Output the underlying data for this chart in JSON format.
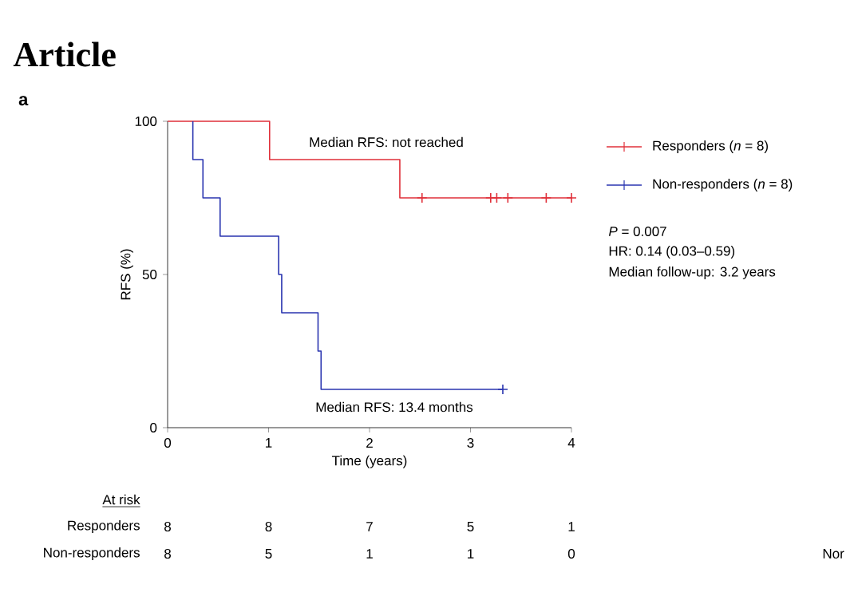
{
  "chart_data": {
    "type": "step",
    "title": "a",
    "xlabel": "Time (years)",
    "ylabel": "RFS (%)",
    "xlim": [
      0,
      4
    ],
    "ylim": [
      0,
      100
    ],
    "xticks": [
      0,
      1,
      2,
      3,
      4
    ],
    "yticks": [
      0,
      50,
      100
    ],
    "legend": "right",
    "series": [
      {
        "name": "Responders (*n* = 8)",
        "color": "#e0303a",
        "x": [
          0,
          1.01,
          2.3,
          4.0
        ],
        "values": [
          100,
          87.5,
          75,
          75
        ]
      },
      {
        "name": "Non-responders (*n* = 8)",
        "color": "#2a35b0",
        "x": [
          0.25,
          0.25,
          0.35,
          0.52,
          1.1,
          1.13,
          1.49,
          1.52,
          3.32
        ],
        "values": [
          100,
          87.5,
          75,
          62.5,
          50,
          37.5,
          25,
          12.5,
          12.5
        ]
      },
      {
        "type": "scatter",
        "marker": "cross",
        "color": "#e0303a",
        "x": [
          2.52,
          3.2,
          3.26,
          3.37,
          3.75,
          4.0
        ],
        "values": [
          75,
          75,
          75,
          75,
          75,
          75
        ]
      },
      {
        "type": "scatter",
        "marker": "cross",
        "color": "#2a35b0",
        "x": [
          3.32
        ],
        "values": [
          12.5
        ]
      }
    ],
    "annotations": [
      "Article",
      "Median RFS: not reached",
      "Median RFS: 13.4 months",
      "*P* = 0.007",
      "HR: 0.14 (0.03–0.59)",
      "Median follow-up: 3.2 years",
      "At risk",
      "Responders",
      "Non-responders",
      "8",
      "8",
      "7",
      "5",
      "1",
      "8",
      "5",
      "1",
      "1",
      "0",
      "Nor"
    ]
  }
}
